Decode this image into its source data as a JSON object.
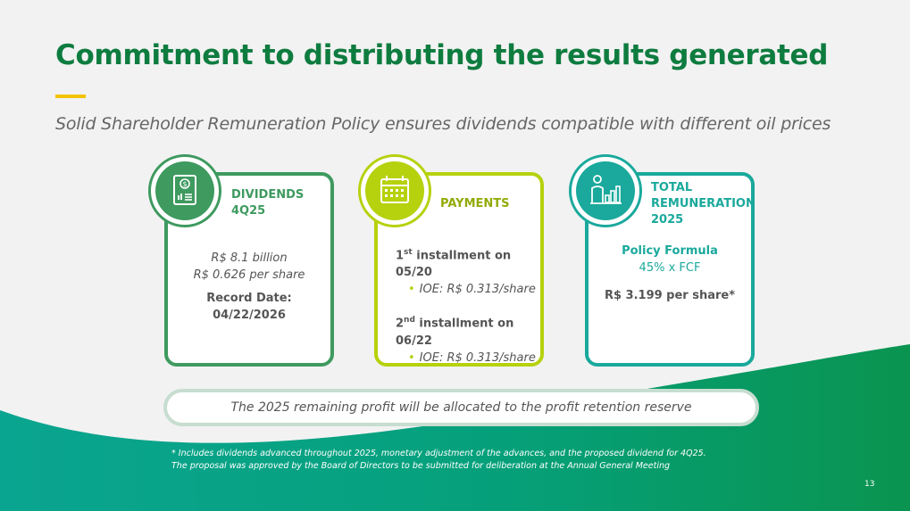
{
  "slide": {
    "title": "Commitment to distributing the results generated",
    "subtitle": "Solid Shareholder Remuneration Policy ensures dividends compatible with different oil prices",
    "page_number": "13"
  },
  "colors": {
    "title_green": "#0e7c3f",
    "accent_yellow": "#f2c300",
    "dividends_green": "#3e9a5f",
    "payments_lime": "#b6d10e",
    "remuneration_teal": "#1aa99c"
  },
  "cards": {
    "dividends": {
      "icon": "document-dollar-icon",
      "heading_line1": "DIVIDENDS",
      "heading_line2": "4Q25",
      "amount": "R$ 8.1 billion",
      "per_share": "R$ 0.626 per share",
      "record_label": "Record Date:",
      "record_date": "04/22/2026"
    },
    "payments": {
      "icon": "calendar-icon",
      "heading": "PAYMENTS",
      "first_ord": "1",
      "first_sup": "st",
      "first_text": " installment on 05/20",
      "first_detail": "IOE: R$ 0.313/share",
      "second_ord": "2",
      "second_sup": "nd",
      "second_text": " installment on 06/22",
      "second_detail": "IOE: R$ 0.313/share"
    },
    "remuneration": {
      "icon": "person-chart-icon",
      "heading_line1": "TOTAL",
      "heading_line2": "REMUNERATION",
      "heading_line3": "2025",
      "policy_label": "Policy Formula",
      "policy_formula": "45% x FCF",
      "per_share": "R$ 3.199 per share*"
    }
  },
  "banner": {
    "text": "The 2025 remaining profit will be allocated to the profit retention reserve"
  },
  "footnote": {
    "line1": "* Includes dividends advanced throughout 2025, monetary adjustment of the advances, and the proposed dividend for 4Q25.",
    "line2": "The proposal was approved by the Board of Directors to be submitted for deliberation at the Annual General Meeting"
  }
}
